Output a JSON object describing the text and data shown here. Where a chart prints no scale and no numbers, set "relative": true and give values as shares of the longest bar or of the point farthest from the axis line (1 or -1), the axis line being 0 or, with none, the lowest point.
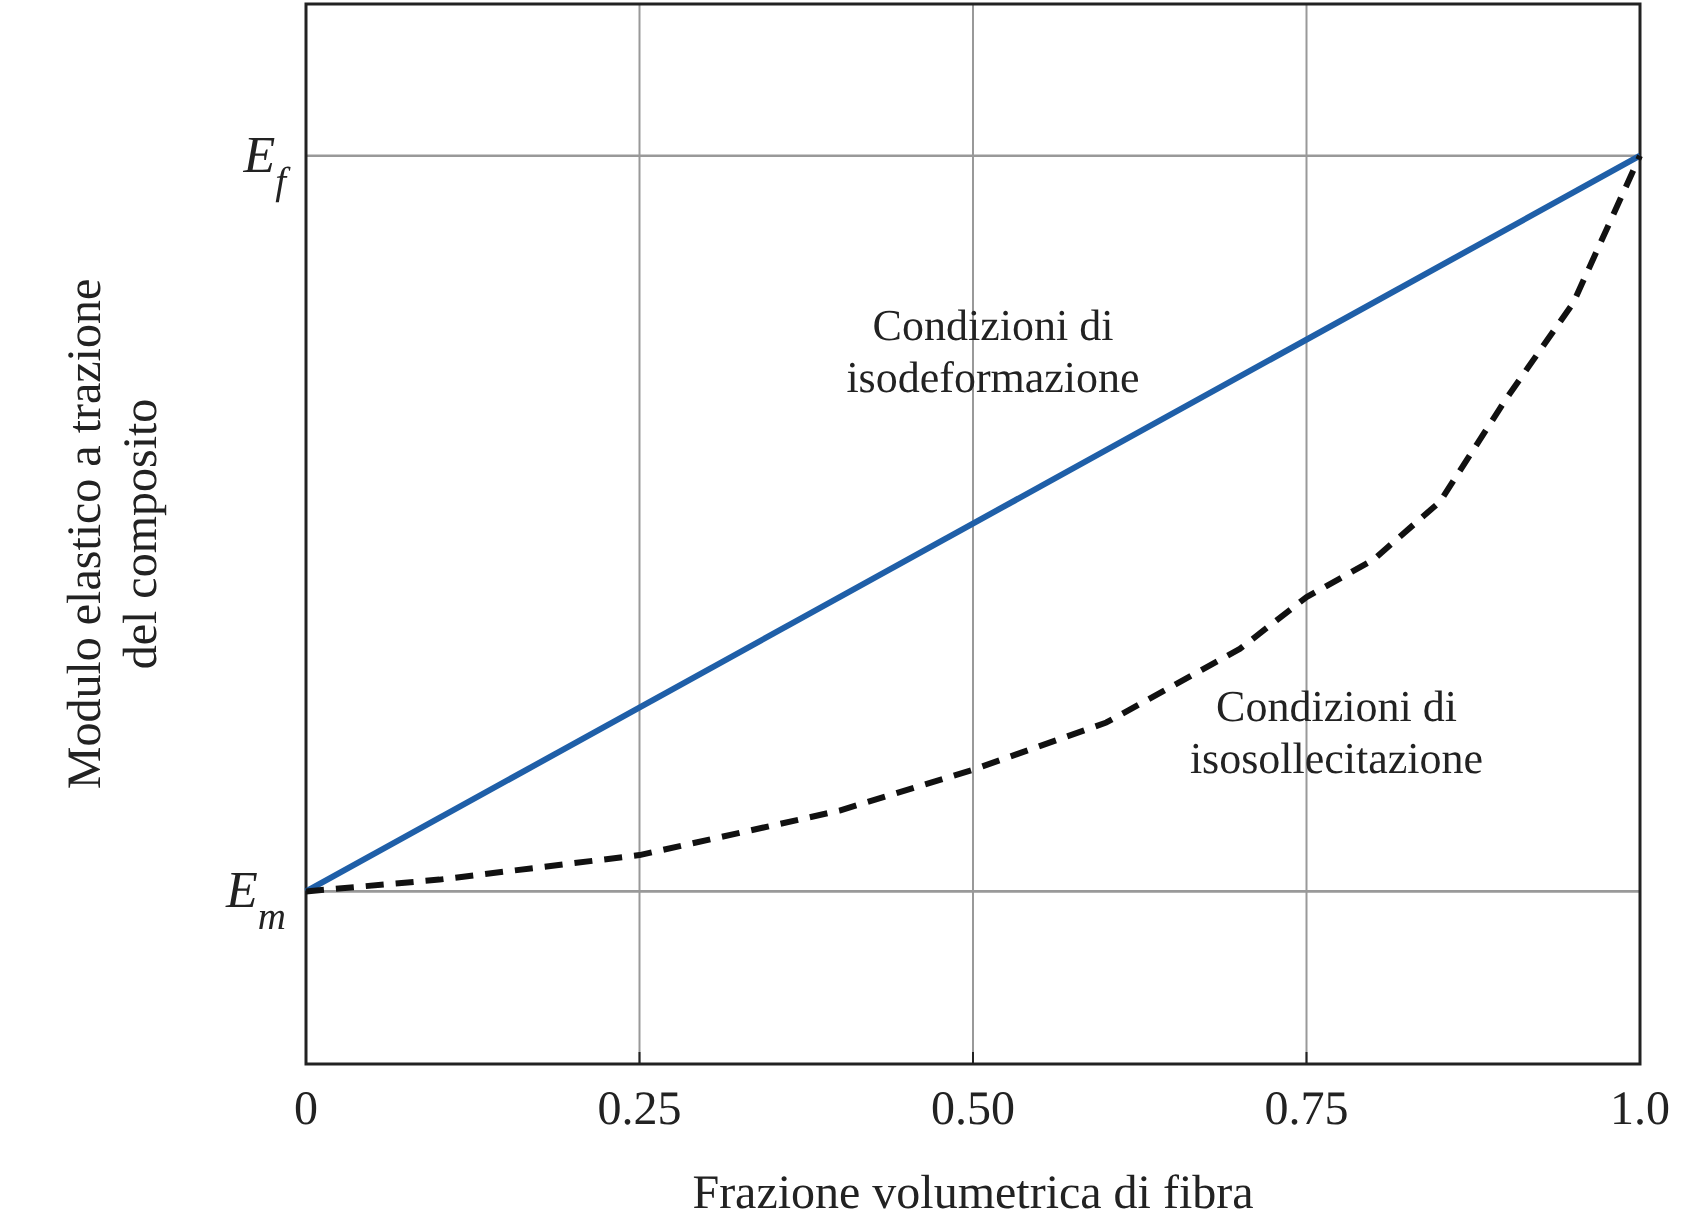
{
  "chart_data": {
    "type": "line",
    "xlabel": "Frazione volumetrica di fibra",
    "ylabel": "Modulo elastico a trazione del composito",
    "x": [
      0,
      0.1,
      0.25,
      0.4,
      0.5,
      0.6,
      0.7,
      0.75,
      0.8,
      0.85,
      0.9,
      0.95,
      1
    ],
    "xlim": [
      0,
      1
    ],
    "relative": true,
    "xticks": [
      0,
      0.25,
      {
        "value": 0.5,
        "label": "0.50"
      },
      0.75,
      {
        "value": 1,
        "label": "1.0"
      }
    ],
    "grid": "x",
    "ref_lines": [
      {
        "axis": "y",
        "value": 0.19,
        "label": "E$_{m}$",
        "color": "#999999"
      },
      {
        "axis": "y",
        "value": 1,
        "label": "E$_{f}$",
        "color": "#999999"
      }
    ],
    "series": [
      {
        "name": "Condizioni di isodeformazione",
        "color": "#1f5fa8",
        "line_style": "solid",
        "x": [
          0,
          1
        ],
        "values": [
          0.19,
          1
        ]
      },
      {
        "name": "Condizioni di isosollecitazione",
        "color": "#111111",
        "line_style": "dashed",
        "values": [
          0.19,
          0.203,
          0.23,
          0.279,
          0.324,
          0.376,
          0.457,
          0.514,
          0.555,
          0.619,
          0.733,
          0.838,
          1
        ]
      }
    ]
  }
}
